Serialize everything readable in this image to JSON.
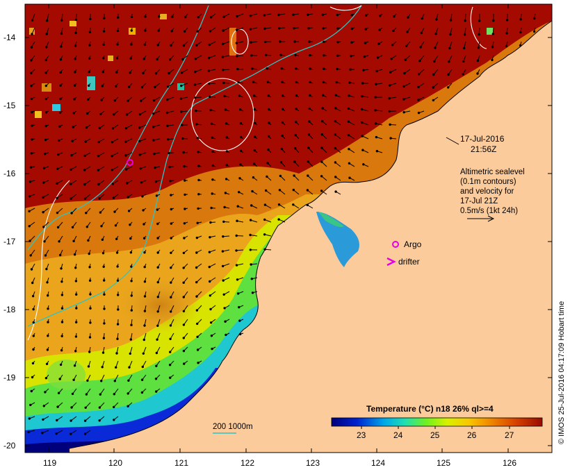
{
  "map": {
    "lat_ticks": [
      "-14",
      "-15",
      "-16",
      "-17",
      "-18",
      "-19",
      "-20"
    ],
    "lon_ticks": [
      "119",
      "120",
      "121",
      "122",
      "123",
      "124",
      "125",
      "126"
    ]
  },
  "annotations": {
    "datetime_line1": "17-Jul-2016",
    "datetime_line2": "21:56Z",
    "legend_line1": "Altimetric sealevel",
    "legend_line2": "(0.1m contours)",
    "legend_line3": "and velocity for",
    "legend_line4": "17-Jul 21Z",
    "legend_line5": "0.5m/s (1kt 24h)",
    "argo_label": "Argo",
    "drifter_label": "drifter",
    "depth_label": "200  1000m"
  },
  "colorbar": {
    "title": "Temperature (°C) n18 26% ql>=4",
    "ticks": [
      "23",
      "24",
      "25",
      "26",
      "27"
    ]
  },
  "credit": "© IMOS 25-Jul-2016 04:17:09 Hobart time",
  "colors": {
    "land": "#fbcb9c",
    "warm": "#a50a00",
    "argo_marker": "#e600e6",
    "isobath": "#2ec4c4",
    "sealevel_contour": "#ffffff"
  }
}
